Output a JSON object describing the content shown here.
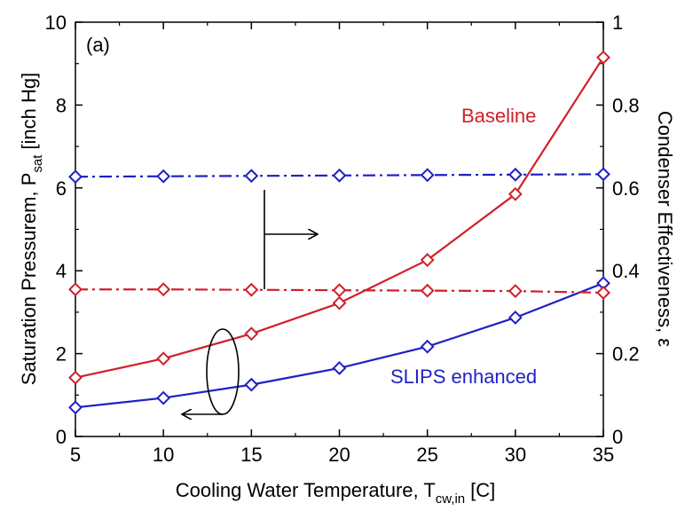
{
  "colors": {
    "baseline": "#d0202a",
    "slips": "#1f1fc8",
    "axis": "#000000"
  },
  "chart_data": {
    "type": "line",
    "panel_label": "(a)",
    "xlabel": "Cooling Water Temperature, T",
    "xlabel_sub": "cw,in",
    "xlabel_unit": "[C]",
    "ylabel_left": "Saturation Pressurem, P",
    "ylabel_left_sub": "sat",
    "ylabel_left_unit": "[inch Hg]",
    "ylabel_right": "Condenser Effectiveness, ε",
    "xlim": [
      5,
      35
    ],
    "ylim_left": [
      0,
      10
    ],
    "ylim_right": [
      0,
      1
    ],
    "x_ticks": [
      5,
      10,
      15,
      20,
      25,
      30,
      35
    ],
    "y_left_ticks": [
      0,
      2,
      4,
      6,
      8,
      10
    ],
    "y_right_ticks": [
      "0",
      "0.2",
      "0.4",
      "0.6",
      "0.8",
      "1"
    ],
    "y_right_tick_values": [
      0,
      0.2,
      0.4,
      0.6,
      0.8,
      1.0
    ],
    "grid": false,
    "series": [
      {
        "name": "Baseline",
        "axis": "left",
        "style": "solid",
        "color": "#d0202a",
        "x": [
          5,
          10,
          15,
          20,
          25,
          30,
          35
        ],
        "y": [
          1.42,
          1.88,
          2.48,
          3.22,
          4.26,
          5.85,
          9.15
        ]
      },
      {
        "name": "SLIPS enhanced",
        "axis": "left",
        "style": "solid",
        "color": "#1f1fc8",
        "x": [
          5,
          10,
          15,
          20,
          25,
          30,
          35
        ],
        "y": [
          0.7,
          0.93,
          1.25,
          1.65,
          2.17,
          2.87,
          3.7
        ]
      },
      {
        "axis": "right",
        "style": "dashdot",
        "color": "#1f1fc8",
        "x": [
          5,
          10,
          15,
          20,
          25,
          30,
          35
        ],
        "y": [
          0.627,
          0.628,
          0.629,
          0.63,
          0.631,
          0.632,
          0.633
        ]
      },
      {
        "axis": "right",
        "style": "dashdot",
        "color": "#d0202a",
        "x": [
          5,
          10,
          15,
          20,
          25,
          30,
          35
        ],
        "y": [
          0.355,
          0.355,
          0.354,
          0.353,
          0.352,
          0.351,
          0.347
        ]
      }
    ],
    "annotations": [
      {
        "text": "Baseline",
        "color": "#d0202a"
      },
      {
        "text": "SLIPS enhanced",
        "color": "#1f1fc8"
      }
    ]
  }
}
